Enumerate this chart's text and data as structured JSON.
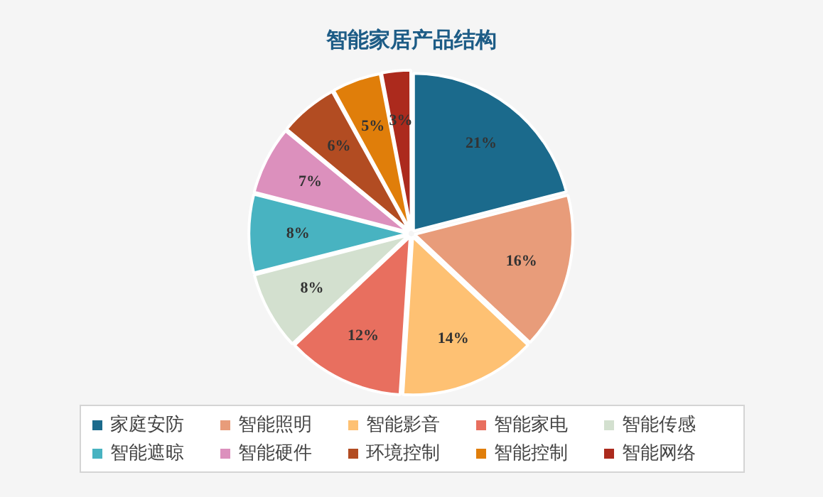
{
  "chart_data": {
    "type": "pie",
    "title": "智能家居产品结构",
    "categories": [
      "家庭安防",
      "智能照明",
      "智能影音",
      "智能家电",
      "智能传感",
      "智能遮晾",
      "智能硬件",
      "环境控制",
      "智能控制",
      "智能网络"
    ],
    "values": [
      21,
      16,
      14,
      12,
      8,
      8,
      7,
      6,
      5,
      3
    ],
    "colors": [
      "#1b6a8c",
      "#e89c7a",
      "#fec173",
      "#e86f5f",
      "#d3e0cf",
      "#48b3c1",
      "#dc90bd",
      "#b24c22",
      "#e07e0a",
      "#ac2a1d"
    ],
    "value_labels": [
      "21%",
      "16%",
      "14%",
      "12%",
      "8%",
      "8%",
      "7%",
      "6%",
      "5%",
      "3%"
    ],
    "legend": "bottom"
  }
}
